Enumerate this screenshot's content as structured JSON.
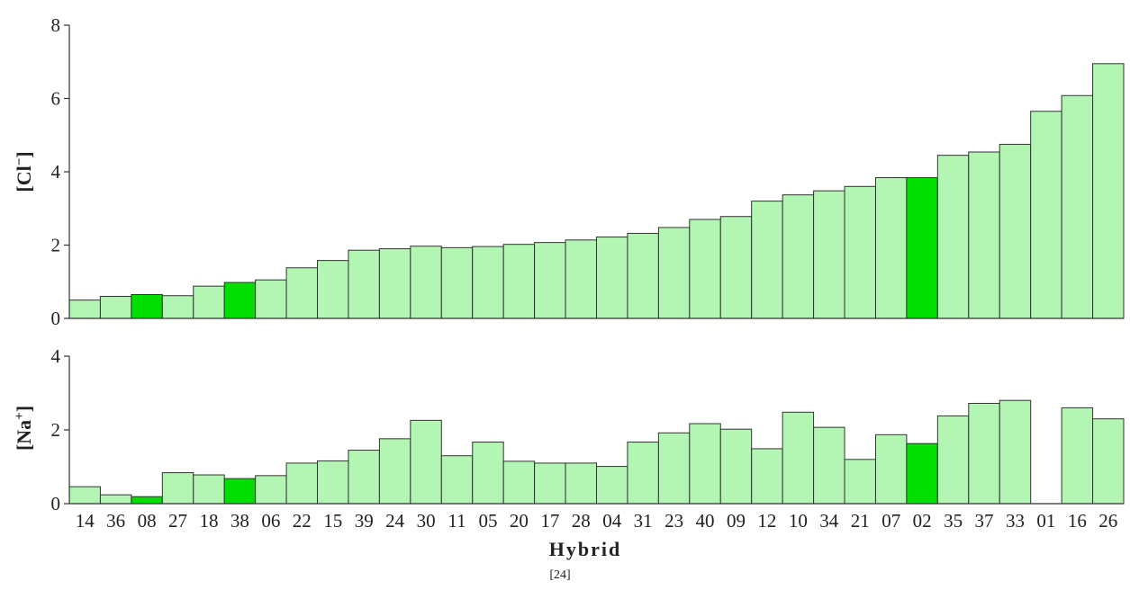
{
  "colors": {
    "bar": "#b3f5b3",
    "highlight": "#00dd00",
    "outline": "#333333"
  },
  "xlabel": "Hybrid",
  "caption": "[24]",
  "categories": [
    "14",
    "36",
    "08",
    "27",
    "18",
    "38",
    "06",
    "22",
    "15",
    "39",
    "24",
    "30",
    "11",
    "05",
    "20",
    "17",
    "28",
    "04",
    "31",
    "23",
    "40",
    "09",
    "12",
    "10",
    "34",
    "21",
    "07",
    "02",
    "35",
    "37",
    "33",
    "01",
    "16",
    "26"
  ],
  "highlighted": [
    "08",
    "38",
    "02"
  ],
  "chart_data": [
    {
      "type": "bar",
      "ylabel_text": "[Cl",
      "ylabel_sup": "−",
      "ylabel_end": "]",
      "ylim": [
        0,
        8
      ],
      "yticks": [
        0,
        2,
        4,
        6,
        8
      ],
      "values": [
        0.5,
        0.6,
        0.65,
        0.62,
        0.88,
        0.98,
        1.05,
        1.38,
        1.58,
        1.86,
        1.9,
        1.97,
        1.93,
        1.96,
        2.02,
        2.07,
        2.14,
        2.22,
        2.32,
        2.48,
        2.7,
        2.78,
        3.2,
        3.37,
        3.48,
        3.6,
        3.84,
        3.84,
        4.45,
        4.54,
        4.75,
        5.65,
        6.08,
        6.95
      ]
    },
    {
      "type": "bar",
      "ylabel_text": "[Na",
      "ylabel_sup": "+",
      "ylabel_end": "]",
      "ylim": [
        0,
        4
      ],
      "yticks": [
        0,
        2,
        4
      ],
      "values": [
        0.46,
        0.24,
        0.19,
        0.84,
        0.78,
        0.68,
        0.76,
        1.1,
        1.16,
        1.45,
        1.76,
        2.26,
        1.3,
        1.67,
        1.15,
        1.1,
        1.1,
        1.01,
        1.67,
        1.92,
        2.17,
        2.02,
        1.49,
        2.48,
        2.07,
        1.2,
        1.87,
        1.63,
        2.38,
        2.72,
        2.8,
        null,
        2.6,
        2.3
      ]
    }
  ]
}
